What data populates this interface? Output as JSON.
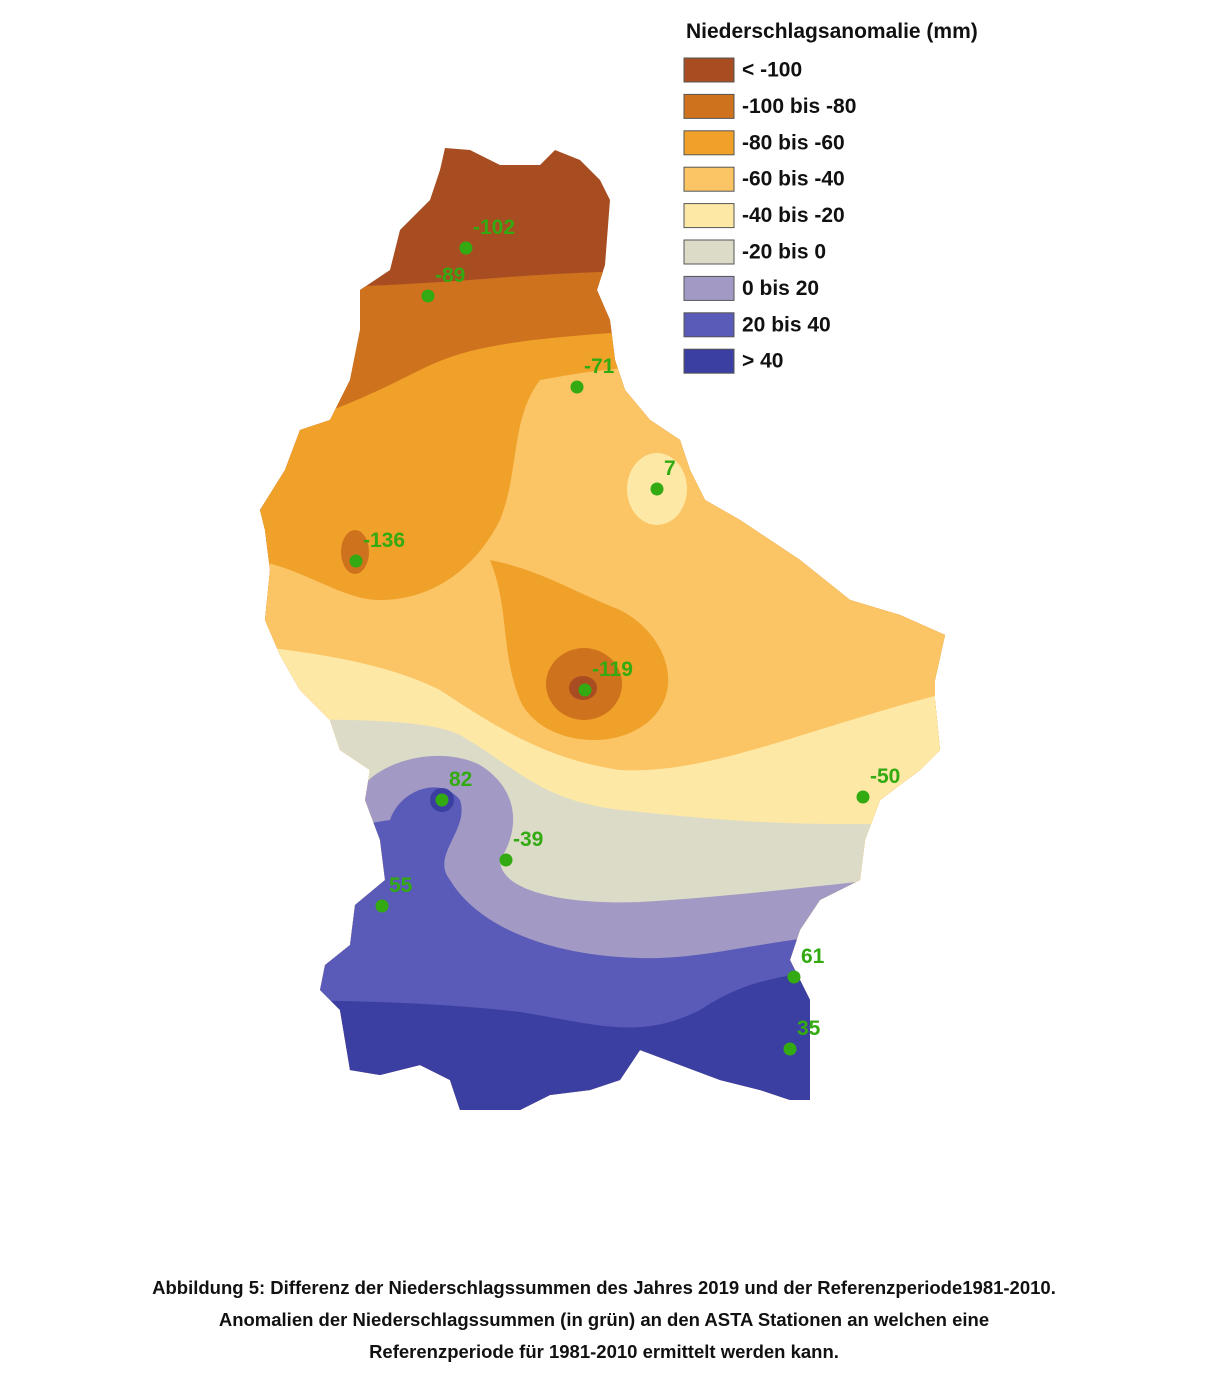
{
  "legend": {
    "title": "Niederschlagsanomalie (mm)",
    "items": [
      {
        "label": "< -100",
        "color": "#a84d22"
      },
      {
        "label": "-100 bis -80",
        "color": "#cf721e"
      },
      {
        "label": "-80 bis -60",
        "color": "#f0a12a"
      },
      {
        "label": "-60 bis -40",
        "color": "#fbc464"
      },
      {
        "label": "-40 bis -20",
        "color": "#fde8a6"
      },
      {
        "label": "-20 bis 0",
        "color": "#dcdbc7"
      },
      {
        "label": "0 bis 20",
        "color": "#a29ac4"
      },
      {
        "label": "20 bis 40",
        "color": "#5a5bb8"
      },
      {
        "label": "> 40",
        "color": "#3c3fa2"
      }
    ]
  },
  "stations": {
    "color": "#33aa11",
    "values": [
      -102,
      -89,
      -71,
      7,
      -136,
      -119,
      -50,
      82,
      -39,
      55,
      61,
      35
    ]
  },
  "caption": [
    "Abbildung 5: Differenz der Niederschlagssummen des Jahres 2019 und der Referenzperiode1981-2010.",
    "Anomalien der Niederschlagssummen (in grün) an den ASTA Stationen an welchen eine",
    "Referenzperiode für 1981-2010 ermittelt werden kann."
  ]
}
